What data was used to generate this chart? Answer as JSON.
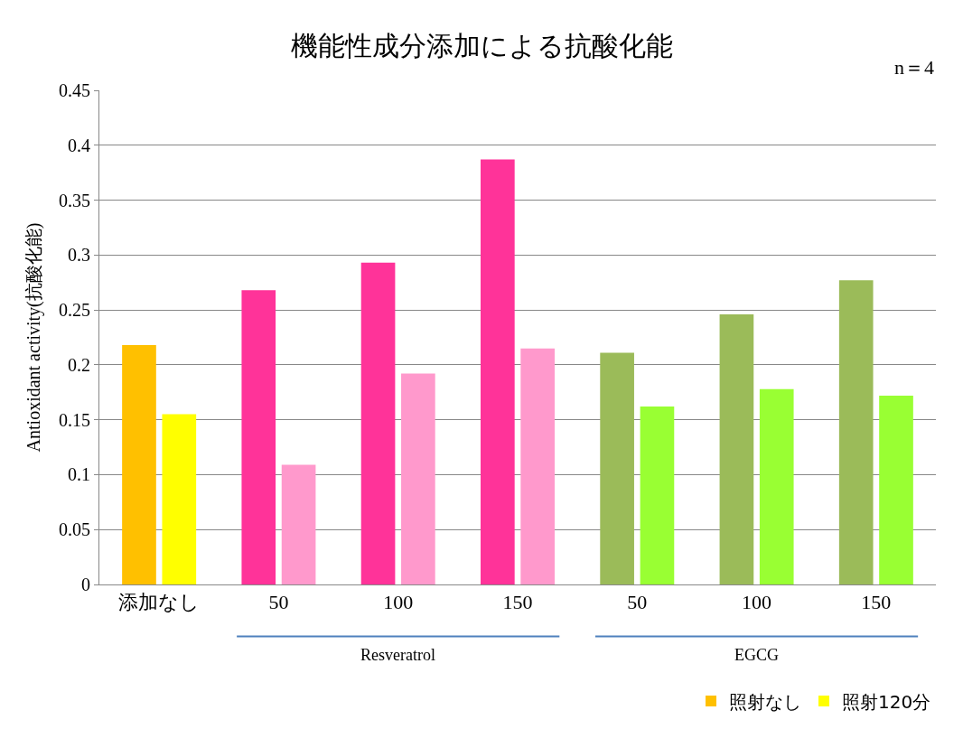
{
  "chart_data": {
    "type": "bar",
    "title": "機能性成分添加による抗酸化能",
    "ylabel": "Antioxidant activity(抗酸化能)",
    "categories": [
      "添加なし",
      "50",
      "100",
      "150",
      "50",
      "100",
      "150"
    ],
    "series": [
      {
        "name": "照射なし",
        "colors": [
          "#ffc000",
          "#ff3399",
          "#ff3399",
          "#ff3399",
          "#9bbb59",
          "#9bbb59",
          "#9bbb59"
        ],
        "values": [
          0.218,
          0.268,
          0.293,
          0.387,
          0.211,
          0.246,
          0.277
        ]
      },
      {
        "name": "照射120分",
        "colors": [
          "#ffff00",
          "#ff99cc",
          "#ff99cc",
          "#ff99cc",
          "#99ff33",
          "#99ff33",
          "#99ff33"
        ],
        "values": [
          0.155,
          0.109,
          0.192,
          0.215,
          0.162,
          0.178,
          0.172
        ]
      }
    ],
    "ylim": [
      0,
      0.45
    ],
    "yticks": [
      0,
      0.05,
      0.1,
      0.15,
      0.2,
      0.25,
      0.3,
      0.35,
      0.4,
      0.45
    ],
    "grid": "y",
    "legend": "bottom right",
    "annotations": [
      "n＝4",
      "Resveratrol",
      "EGCG"
    ]
  }
}
